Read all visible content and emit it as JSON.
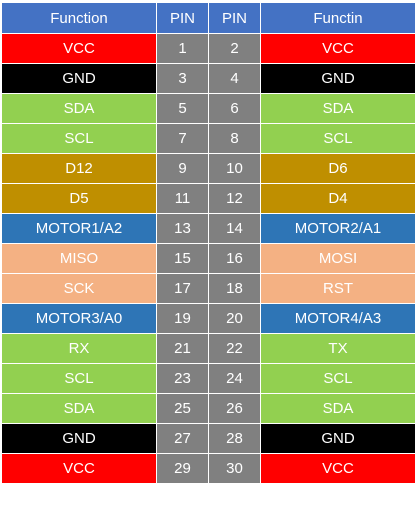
{
  "header": {
    "left": "Function",
    "pin_a": "PIN",
    "pin_b": "PIN",
    "right": "Functin"
  },
  "rows": [
    {
      "left": "VCC",
      "pin_a": "1",
      "pin_b": "2",
      "right": "VCC",
      "left_color": "#ff0000",
      "right_color": "#ff0000"
    },
    {
      "left": "GND",
      "pin_a": "3",
      "pin_b": "4",
      "right": "GND",
      "left_color": "#000000",
      "right_color": "#000000"
    },
    {
      "left": "SDA",
      "pin_a": "5",
      "pin_b": "6",
      "right": "SDA",
      "left_color": "#92d050",
      "right_color": "#92d050"
    },
    {
      "left": "SCL",
      "pin_a": "7",
      "pin_b": "8",
      "right": "SCL",
      "left_color": "#92d050",
      "right_color": "#92d050"
    },
    {
      "left": "D12",
      "pin_a": "9",
      "pin_b": "10",
      "right": "D6",
      "left_color": "#bf8f00",
      "right_color": "#bf8f00"
    },
    {
      "left": "D5",
      "pin_a": "11",
      "pin_b": "12",
      "right": "D4",
      "left_color": "#bf8f00",
      "right_color": "#bf8f00"
    },
    {
      "left": "MOTOR1/A2",
      "pin_a": "13",
      "pin_b": "14",
      "right": "MOTOR2/A1",
      "left_color": "#2e75b6",
      "right_color": "#2e75b6"
    },
    {
      "left": "MISO",
      "pin_a": "15",
      "pin_b": "16",
      "right": "MOSI",
      "left_color": "#f4b183",
      "right_color": "#f4b183"
    },
    {
      "left": "SCK",
      "pin_a": "17",
      "pin_b": "18",
      "right": "RST",
      "left_color": "#f4b183",
      "right_color": "#f4b183"
    },
    {
      "left": "MOTOR3/A0",
      "pin_a": "19",
      "pin_b": "20",
      "right": "MOTOR4/A3",
      "left_color": "#2e75b6",
      "right_color": "#2e75b6"
    },
    {
      "left": "RX",
      "pin_a": "21",
      "pin_b": "22",
      "right": "TX",
      "left_color": "#92d050",
      "right_color": "#92d050"
    },
    {
      "left": "SCL",
      "pin_a": "23",
      "pin_b": "24",
      "right": "SCL",
      "left_color": "#92d050",
      "right_color": "#92d050"
    },
    {
      "left": "SDA",
      "pin_a": "25",
      "pin_b": "26",
      "right": "SDA",
      "left_color": "#92d050",
      "right_color": "#92d050"
    },
    {
      "left": "GND",
      "pin_a": "27",
      "pin_b": "28",
      "right": "GND",
      "left_color": "#000000",
      "right_color": "#000000"
    },
    {
      "left": "VCC",
      "pin_a": "29",
      "pin_b": "30",
      "right": "VCC",
      "left_color": "#ff0000",
      "right_color": "#ff0000"
    }
  ],
  "colors": {
    "header_bg": "#4472c4",
    "pin_bg": "#808080",
    "text": "#ffffff"
  }
}
